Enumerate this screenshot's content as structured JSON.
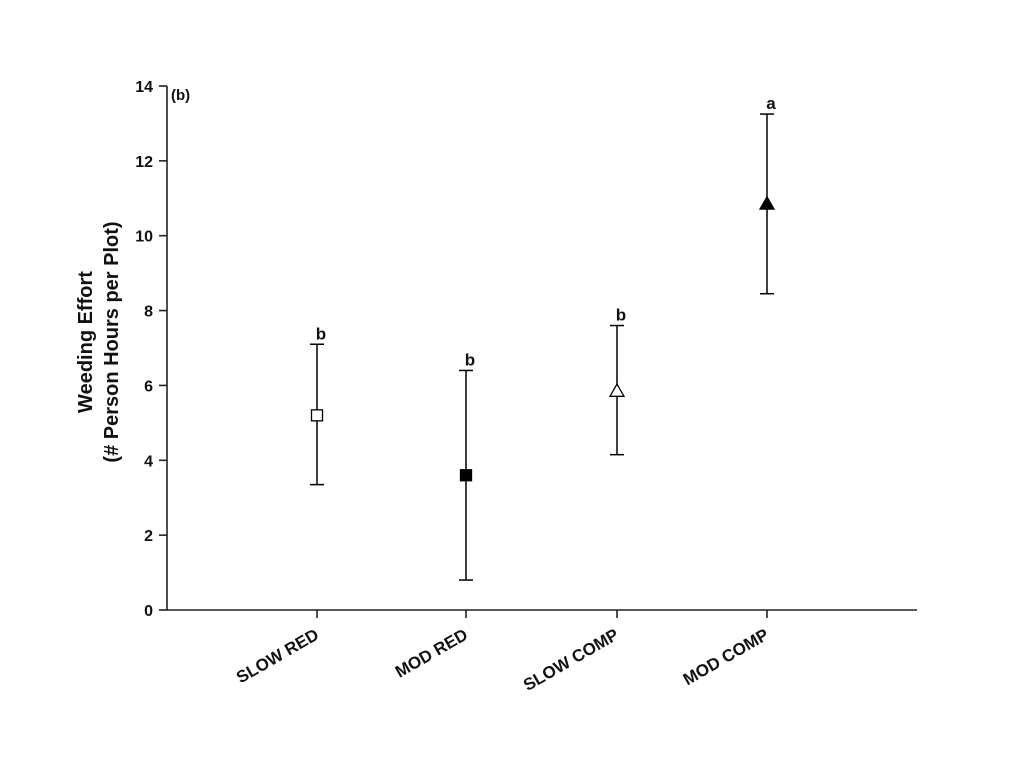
{
  "chart_data": {
    "type": "scatter",
    "panel_label": "(b)",
    "title": "",
    "xlabel": "",
    "ylabel": "Weeding Effort",
    "ylabel_line2": "(# Person Hours per Plot)",
    "ylim": [
      0,
      14
    ],
    "yticks": [
      0,
      2,
      4,
      6,
      8,
      10,
      12,
      14
    ],
    "grid": false,
    "categories": [
      "SLOW RED",
      "MOD RED",
      "SLOW COMP",
      "MOD COMP"
    ],
    "points": [
      {
        "category": "SLOW RED",
        "value": 5.2,
        "err_low": 3.35,
        "err_high": 7.1,
        "marker": "square",
        "filled": false,
        "sig": "b"
      },
      {
        "category": "MOD RED",
        "value": 3.6,
        "err_low": 0.8,
        "err_high": 6.4,
        "marker": "square",
        "filled": true,
        "sig": "b"
      },
      {
        "category": "SLOW COMP",
        "value": 5.85,
        "err_low": 4.15,
        "err_high": 7.6,
        "marker": "triangle",
        "filled": false,
        "sig": "b"
      },
      {
        "category": "MOD COMP",
        "value": 10.85,
        "err_low": 8.45,
        "err_high": 13.25,
        "marker": "triangle",
        "filled": true,
        "sig": "a"
      }
    ],
    "colors": {
      "marker": "#000000",
      "axis": "#222222"
    }
  }
}
